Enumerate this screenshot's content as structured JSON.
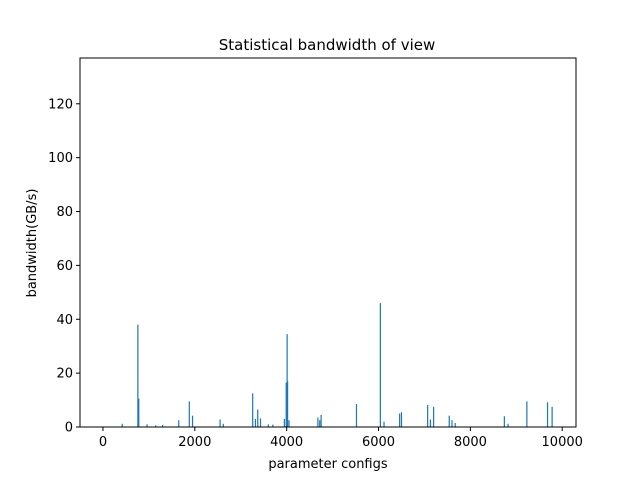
{
  "chart_data": {
    "type": "bar",
    "title": "Statistical bandwidth of view",
    "xlabel": "parameter configs",
    "ylabel": "bandwidth(GB/s)",
    "xlim": [
      -500,
      10300
    ],
    "ylim": [
      0,
      137
    ],
    "xticks": [
      0,
      2000,
      4000,
      6000,
      8000,
      10000
    ],
    "yticks": [
      0,
      20,
      40,
      60,
      80,
      100,
      120
    ],
    "grid": false,
    "legend": "none",
    "bar_color": "#1f77b4",
    "series": [
      {
        "x": [
          420,
          760,
          770,
          780,
          960,
          1150,
          1300,
          1650,
          1880,
          1950,
          2550,
          2620,
          3260,
          3320,
          3370,
          3430,
          3600,
          3700,
          3950,
          3990,
          4010,
          4020,
          4050,
          4680,
          4720,
          4750,
          5520,
          6040,
          6120,
          6460,
          6500,
          7070,
          7130,
          7200,
          7540,
          7600,
          7670,
          8740,
          8820,
          9230,
          9680,
          9780
        ],
        "values": [
          1.2,
          38,
          9.5,
          10.5,
          1.0,
          0.6,
          0.8,
          2.5,
          9.5,
          4.2,
          2.8,
          1.2,
          12.5,
          3.0,
          6.5,
          3.2,
          1.0,
          0.9,
          3.0,
          16.5,
          34.5,
          17.0,
          2.5,
          3.5,
          2.5,
          4.5,
          8.5,
          46.0,
          2.0,
          5.0,
          5.5,
          8.2,
          2.8,
          7.5,
          4.2,
          2.5,
          1.5,
          4.0,
          1.2,
          9.5,
          9.2,
          7.5
        ]
      }
    ]
  }
}
